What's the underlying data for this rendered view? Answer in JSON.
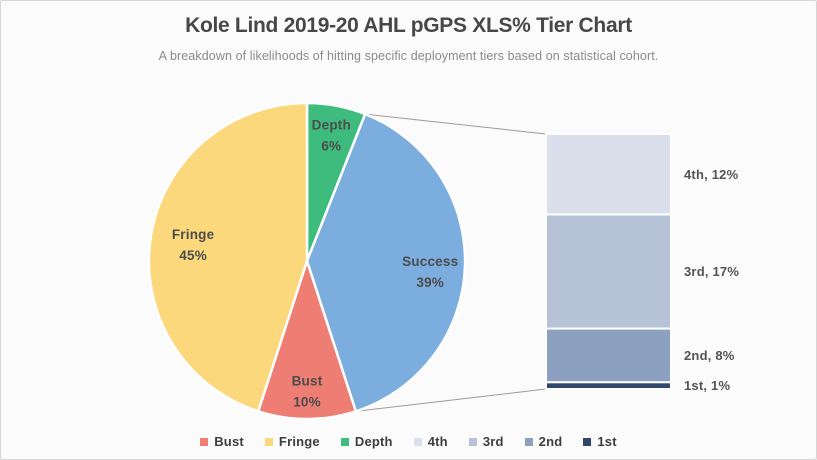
{
  "page": {
    "title": "Kole Lind 2019-20 AHL pGPS XLS% Tier Chart",
    "subtitle": "A breakdown of likelihoods of hitting specific deployment tiers based on statistical cohort."
  },
  "colors": {
    "background": "#FBFBFB",
    "border": "#D6D6D6",
    "title_text": "#474747",
    "subtitle_text": "#8A8A8A",
    "data_label_text": "#4C4C4C",
    "connector_line": "#9B9B9B"
  },
  "chart_data": {
    "type": "pie",
    "variant": "bar-of-pie",
    "title": "Kole Lind 2019-20 AHL pGPS XLS% Tier Chart",
    "subtitle": "A breakdown of likelihoods of hitting specific deployment tiers based on statistical cohort.",
    "start_angle_deg": 0,
    "direction": "clockwise",
    "slices": [
      {
        "label": "Depth",
        "value": 6,
        "pct_label": "6%",
        "color": "#3EBC7D"
      },
      {
        "label": "Success",
        "value": 39,
        "pct_label": "39%",
        "color": "#7BADDE",
        "breakout_source": true
      },
      {
        "label": "Bust",
        "value": 10,
        "pct_label": "10%",
        "color": "#EE7E74"
      },
      {
        "label": "Fringe",
        "value": 45,
        "pct_label": "45%",
        "color": "#FBD87C"
      }
    ],
    "breakout_bar": {
      "segments": [
        {
          "label": "4th",
          "value": 12,
          "color": "#D9DFEB"
        },
        {
          "label": "3rd",
          "value": 17,
          "color": "#B6C2D6"
        },
        {
          "label": "2nd",
          "value": 8,
          "color": "#8CA1BF"
        },
        {
          "label": "1st",
          "value": 1,
          "color": "#32476B"
        }
      ],
      "label_format": "{label}, {value}%"
    },
    "legend": {
      "position": "bottom",
      "entries": [
        {
          "label": "Bust",
          "color": "#EE7E74"
        },
        {
          "label": "Fringe",
          "color": "#FBD87C"
        },
        {
          "label": "Depth",
          "color": "#3EBC7D"
        },
        {
          "label": "4th",
          "color": "#D9DFEB"
        },
        {
          "label": "3rd",
          "color": "#B6C2D6"
        },
        {
          "label": "2nd",
          "color": "#8CA1BF"
        },
        {
          "label": "1st",
          "color": "#32476B"
        }
      ]
    }
  }
}
